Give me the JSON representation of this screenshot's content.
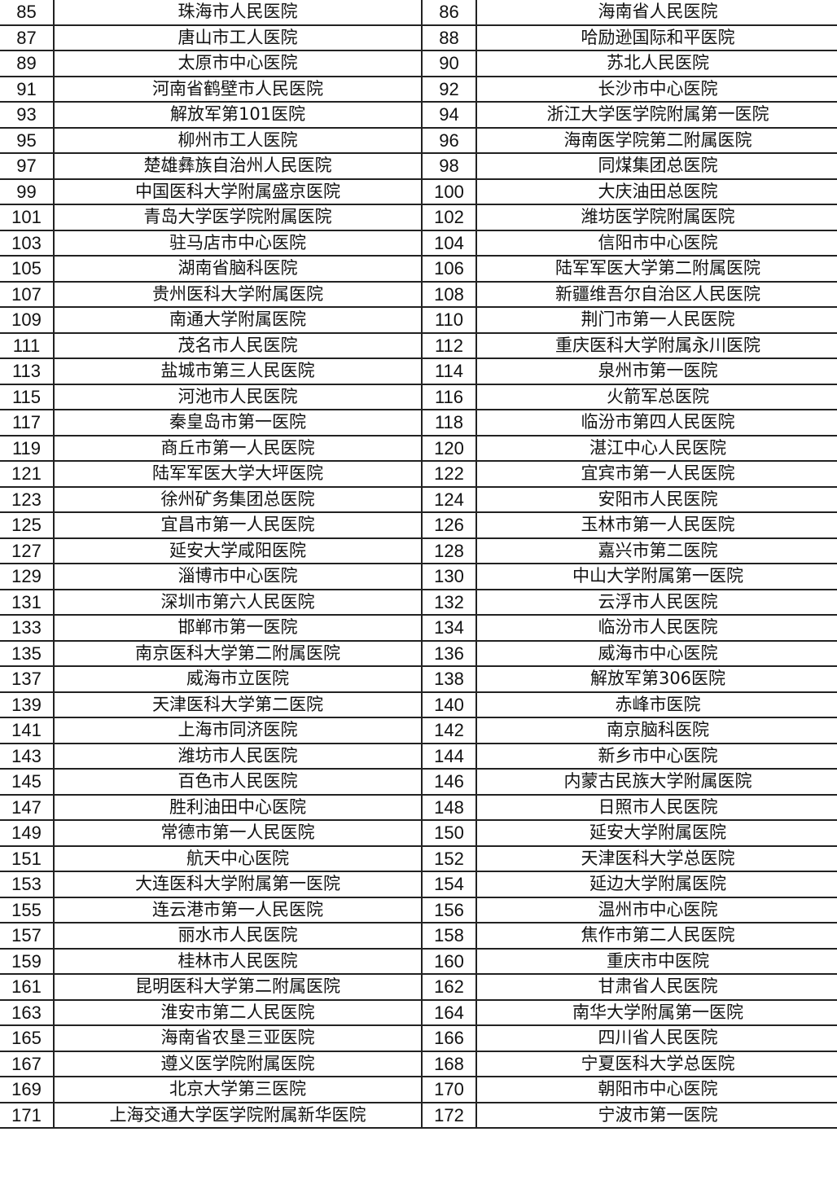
{
  "rows": [
    [
      "85",
      "珠海市人民医院",
      "86",
      "海南省人民医院"
    ],
    [
      "87",
      "唐山市工人医院",
      "88",
      "哈励逊国际和平医院"
    ],
    [
      "89",
      "太原市中心医院",
      "90",
      "苏北人民医院"
    ],
    [
      "91",
      "河南省鹤壁市人民医院",
      "92",
      "长沙市中心医院"
    ],
    [
      "93",
      "解放军第101医院",
      "94",
      "浙江大学医学院附属第一医院"
    ],
    [
      "95",
      "柳州市工人医院",
      "96",
      "海南医学院第二附属医院"
    ],
    [
      "97",
      "楚雄彝族自治州人民医院",
      "98",
      "同煤集团总医院"
    ],
    [
      "99",
      "中国医科大学附属盛京医院",
      "100",
      "大庆油田总医院"
    ],
    [
      "101",
      "青岛大学医学院附属医院",
      "102",
      "潍坊医学院附属医院"
    ],
    [
      "103",
      "驻马店市中心医院",
      "104",
      "信阳市中心医院"
    ],
    [
      "105",
      "湖南省脑科医院",
      "106",
      "陆军军医大学第二附属医院"
    ],
    [
      "107",
      "贵州医科大学附属医院",
      "108",
      "新疆维吾尔自治区人民医院"
    ],
    [
      "109",
      "南通大学附属医院",
      "110",
      "荆门市第一人民医院"
    ],
    [
      "111",
      "茂名市人民医院",
      "112",
      "重庆医科大学附属永川医院"
    ],
    [
      "113",
      "盐城市第三人民医院",
      "114",
      "泉州市第一医院"
    ],
    [
      "115",
      "河池市人民医院",
      "116",
      "火箭军总医院"
    ],
    [
      "117",
      "秦皇岛市第一医院",
      "118",
      "临汾市第四人民医院"
    ],
    [
      "119",
      "商丘市第一人民医院",
      "120",
      "湛江中心人民医院"
    ],
    [
      "121",
      "陆军军医大学大坪医院",
      "122",
      "宜宾市第一人民医院"
    ],
    [
      "123",
      "徐州矿务集团总医院",
      "124",
      "安阳市人民医院"
    ],
    [
      "125",
      "宜昌市第一人民医院",
      "126",
      "玉林市第一人民医院"
    ],
    [
      "127",
      "延安大学咸阳医院",
      "128",
      "嘉兴市第二医院"
    ],
    [
      "129",
      "淄博市中心医院",
      "130",
      "中山大学附属第一医院"
    ],
    [
      "131",
      "深圳市第六人民医院",
      "132",
      "云浮市人民医院"
    ],
    [
      "133",
      "邯郸市第一医院",
      "134",
      "临汾市人民医院"
    ],
    [
      "135",
      "南京医科大学第二附属医院",
      "136",
      "威海市中心医院"
    ],
    [
      "137",
      "威海市立医院",
      "138",
      "解放军第306医院"
    ],
    [
      "139",
      "天津医科大学第二医院",
      "140",
      "赤峰市医院"
    ],
    [
      "141",
      "上海市同济医院",
      "142",
      "南京脑科医院"
    ],
    [
      "143",
      "潍坊市人民医院",
      "144",
      "新乡市中心医院"
    ],
    [
      "145",
      "百色市人民医院",
      "146",
      "内蒙古民族大学附属医院"
    ],
    [
      "147",
      "胜利油田中心医院",
      "148",
      "日照市人民医院"
    ],
    [
      "149",
      "常德市第一人民医院",
      "150",
      "延安大学附属医院"
    ],
    [
      "151",
      "航天中心医院",
      "152",
      "天津医科大学总医院"
    ],
    [
      "153",
      "大连医科大学附属第一医院",
      "154",
      "延边大学附属医院"
    ],
    [
      "155",
      "连云港市第一人民医院",
      "156",
      "温州市中心医院"
    ],
    [
      "157",
      "丽水市人民医院",
      "158",
      "焦作市第二人民医院"
    ],
    [
      "159",
      "桂林市人民医院",
      "160",
      "重庆市中医院"
    ],
    [
      "161",
      "昆明医科大学第二附属医院",
      "162",
      "甘肃省人民医院"
    ],
    [
      "163",
      "淮安市第二人民医院",
      "164",
      "南华大学附属第一医院"
    ],
    [
      "165",
      "海南省农垦三亚医院",
      "166",
      "四川省人民医院"
    ],
    [
      "167",
      "遵义医学院附属医院",
      "168",
      "宁夏医科大学总医院"
    ],
    [
      "169",
      "北京大学第三医院",
      "170",
      "朝阳市中心医院"
    ],
    [
      "171",
      "上海交通大学医学院附属新华医院",
      "172",
      "宁波市第一医院"
    ]
  ]
}
